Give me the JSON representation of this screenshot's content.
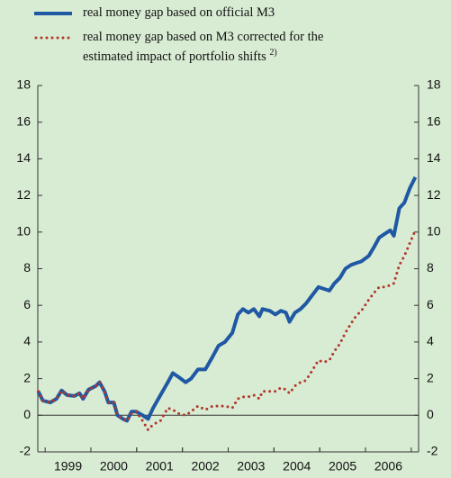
{
  "chart_data": {
    "type": "line",
    "x": [
      1998.85,
      1998.95,
      1999.11,
      1999.25,
      1999.36,
      1999.48,
      1999.64,
      1999.75,
      1999.83,
      1999.95,
      2000.11,
      2000.19,
      2000.3,
      2000.38,
      2000.5,
      2000.58,
      2000.7,
      2000.79,
      2000.89,
      2000.99,
      2001.13,
      2001.25,
      2001.36,
      2001.52,
      2001.68,
      2001.79,
      2001.91,
      2002.07,
      2002.19,
      2002.34,
      2002.5,
      2002.66,
      2002.79,
      2002.93,
      2003.09,
      2003.21,
      2003.32,
      2003.44,
      2003.56,
      2003.68,
      2003.75,
      2003.91,
      2004.03,
      2004.15,
      2004.26,
      2004.34,
      2004.46,
      2004.58,
      2004.7,
      2004.85,
      2004.97,
      2005.09,
      2005.21,
      2005.32,
      2005.44,
      2005.56,
      2005.68,
      2005.79,
      2005.91,
      2006.07,
      2006.19,
      2006.3,
      2006.42,
      2006.54,
      2006.62,
      2006.74,
      2006.85,
      2006.97,
      2007.09
    ],
    "series": [
      {
        "name": "real money gap based on official M3",
        "color": "#1f58a3",
        "style": "solid",
        "values": [
          1.3,
          0.8,
          0.7,
          0.9,
          1.35,
          1.1,
          1.05,
          1.2,
          0.9,
          1.4,
          1.6,
          1.8,
          1.3,
          0.7,
          0.7,
          0.0,
          -0.2,
          -0.3,
          0.2,
          0.2,
          0.0,
          -0.2,
          0.4,
          1.1,
          1.8,
          2.3,
          2.1,
          1.8,
          2.0,
          2.5,
          2.5,
          3.2,
          3.8,
          4.0,
          4.5,
          5.5,
          5.8,
          5.6,
          5.8,
          5.4,
          5.8,
          5.7,
          5.5,
          5.7,
          5.6,
          5.1,
          5.6,
          5.8,
          6.1,
          6.6,
          7.0,
          6.9,
          6.8,
          7.2,
          7.5,
          8.0,
          8.2,
          8.3,
          8.4,
          8.7,
          9.2,
          9.7,
          9.9,
          10.1,
          9.8,
          11.3,
          11.6,
          12.4,
          13.0
        ]
      },
      {
        "name": "real money gap based on M3 corrected for the estimated impact of portfolio shifts",
        "footnote": "2)",
        "color": "#b2382c",
        "style": "dotted",
        "values": [
          1.3,
          0.8,
          0.7,
          0.9,
          1.35,
          1.1,
          1.05,
          1.2,
          0.9,
          1.4,
          1.6,
          1.8,
          1.3,
          0.7,
          0.7,
          0.0,
          -0.2,
          -0.3,
          0.1,
          0.2,
          -0.3,
          -0.8,
          -0.5,
          -0.3,
          0.4,
          0.3,
          0.1,
          0.0,
          0.2,
          0.5,
          0.3,
          0.5,
          0.5,
          0.5,
          0.4,
          0.9,
          1.0,
          1.0,
          1.1,
          0.9,
          1.3,
          1.3,
          1.3,
          1.5,
          1.4,
          1.2,
          1.6,
          1.8,
          1.9,
          2.5,
          3.0,
          2.9,
          3.0,
          3.5,
          3.9,
          4.5,
          5.0,
          5.4,
          5.7,
          6.3,
          6.7,
          7.0,
          7.0,
          7.1,
          7.2,
          8.2,
          8.7,
          9.4,
          10.1
        ]
      }
    ],
    "xlim": [
      1998.84,
      2007.16
    ],
    "xticks": [
      {
        "value": 1999.5,
        "label": "1999"
      },
      {
        "value": 2000.5,
        "label": "2000"
      },
      {
        "value": 2001.5,
        "label": "2001"
      },
      {
        "value": 2002.5,
        "label": "2002"
      },
      {
        "value": 2003.5,
        "label": "2003"
      },
      {
        "value": 2004.5,
        "label": "2004"
      },
      {
        "value": 2005.5,
        "label": "2005"
      },
      {
        "value": 2006.5,
        "label": "2006"
      }
    ],
    "ylim": [
      -2,
      18
    ],
    "yticks": [
      -2,
      0,
      2,
      4,
      6,
      8,
      10,
      12,
      14,
      16,
      18
    ],
    "y2lim": [
      -2,
      18
    ],
    "y2ticks": [
      -2,
      0,
      2,
      4,
      6,
      8,
      10,
      12,
      14,
      16,
      18
    ],
    "grid": false
  }
}
